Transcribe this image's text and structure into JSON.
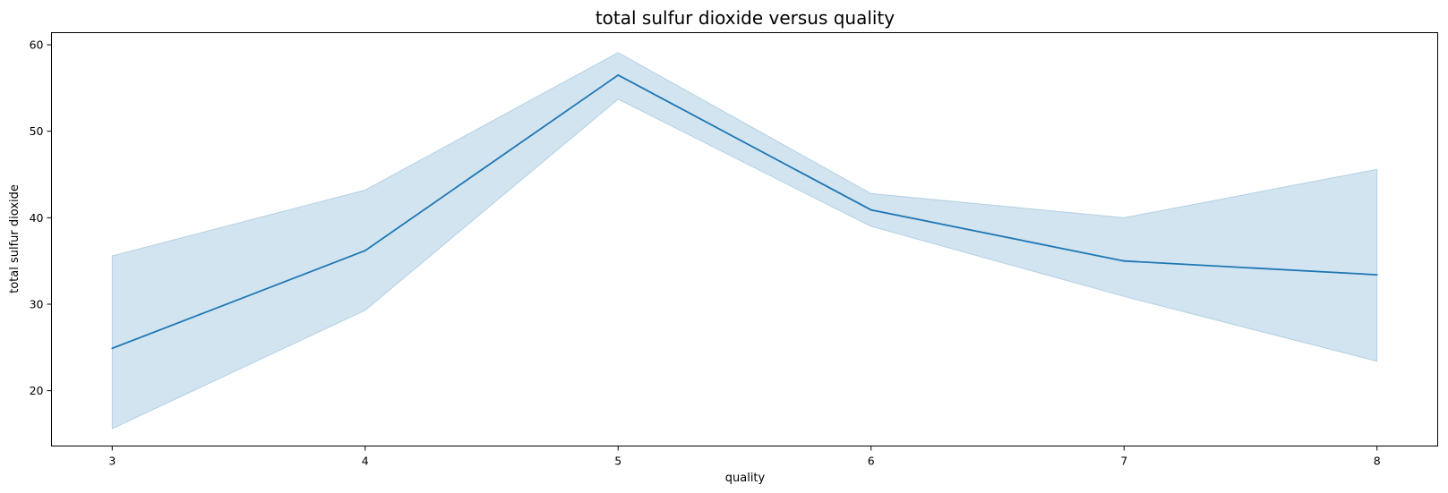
{
  "chart_data": {
    "type": "line",
    "title": "total sulfur dioxide versus quality",
    "xlabel": "quality",
    "ylabel": "total sulfur dioxide",
    "x": [
      3,
      4,
      5,
      6,
      7,
      8
    ],
    "xlim": [
      2.76,
      8.24
    ],
    "ylim": [
      13.6,
      61.4
    ],
    "xticks": [
      3,
      4,
      5,
      6,
      7,
      8
    ],
    "yticks": [
      20,
      30,
      40,
      50,
      60
    ],
    "grid": false,
    "series": [
      {
        "values": [
          24.9,
          36.2,
          56.5,
          40.9,
          35.0,
          33.4
        ],
        "ci_lower": [
          15.6,
          29.3,
          53.7,
          39.0,
          30.9,
          23.4
        ],
        "ci_upper": [
          35.6,
          43.2,
          59.1,
          42.8,
          40.0,
          45.6
        ],
        "color": "#1f77b4",
        "band_color": "#1f77b4"
      }
    ]
  }
}
